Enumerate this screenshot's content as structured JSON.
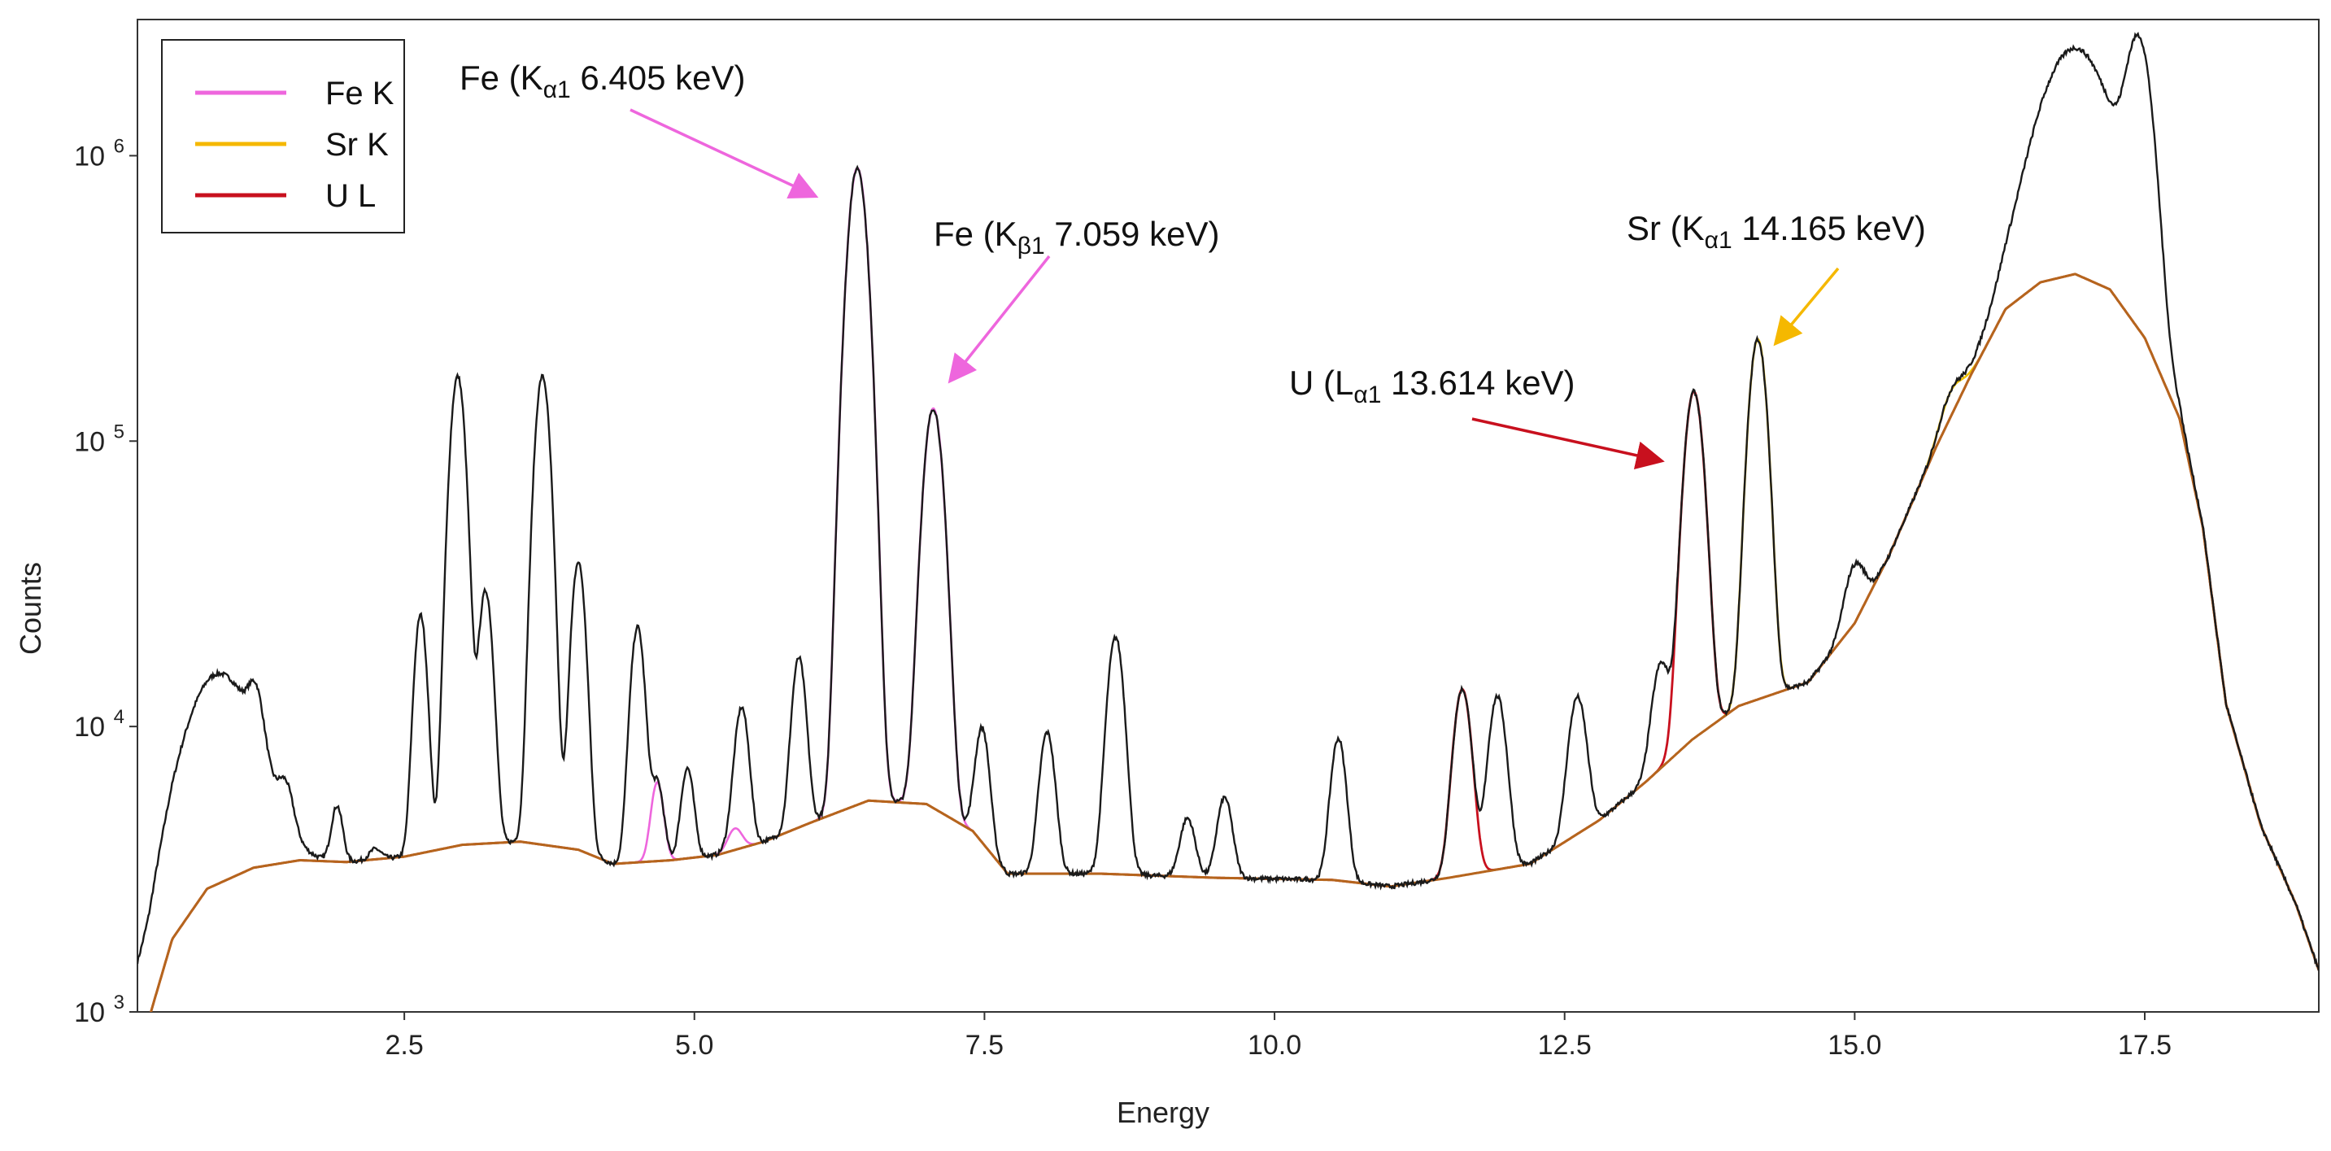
{
  "chart_data": {
    "type": "line",
    "title": "",
    "xlabel": "Energy",
    "ylabel": "Counts",
    "xlim": [
      0.2,
      19.0
    ],
    "ylim": [
      1000,
      3000000
    ],
    "yscale": "log",
    "x_ticks": [
      2.5,
      5.0,
      7.5,
      10.0,
      12.5,
      15.0,
      17.5
    ],
    "x_tick_labels": [
      "2.5",
      "5.0",
      "7.5",
      "10.0",
      "12.5",
      "15.0",
      "17.5"
    ],
    "y_ticks": [
      {
        "value": 1000,
        "base": "10",
        "exp": "3"
      },
      {
        "value": 10000,
        "base": "10",
        "exp": "4"
      },
      {
        "value": 100000,
        "base": "10",
        "exp": "5"
      },
      {
        "value": 1000000,
        "base": "10",
        "exp": "6"
      }
    ],
    "colors": {
      "spectrum": "#1a1a1a",
      "fe": "#ee66dd",
      "sr": "#f2c400",
      "u": "#c8101e",
      "background": "#b5651d"
    },
    "legend": [
      {
        "label": "Fe K",
        "color": "#ee66dd"
      },
      {
        "label": "Sr K",
        "color": "#f5b800"
      },
      {
        "label": "U L",
        "color": "#c8101e"
      }
    ],
    "legend_position": "top-left",
    "baseline": [
      [
        0.3,
        950
      ],
      [
        0.5,
        1800
      ],
      [
        0.8,
        2700
      ],
      [
        1.2,
        3200
      ],
      [
        1.6,
        3400
      ],
      [
        2.0,
        3350
      ],
      [
        2.5,
        3500
      ],
      [
        3.0,
        3850
      ],
      [
        3.5,
        3950
      ],
      [
        4.0,
        3700
      ],
      [
        4.3,
        3300
      ],
      [
        4.8,
        3400
      ],
      [
        5.2,
        3550
      ],
      [
        5.6,
        3950
      ],
      [
        6.0,
        4600
      ],
      [
        6.5,
        5500
      ],
      [
        7.0,
        5350
      ],
      [
        7.4,
        4300
      ],
      [
        7.7,
        3050
      ],
      [
        8.5,
        3050
      ],
      [
        9.5,
        2950
      ],
      [
        10.5,
        2900
      ],
      [
        11.0,
        2750
      ],
      [
        11.5,
        2950
      ],
      [
        12.2,
        3300
      ],
      [
        12.8,
        4700
      ],
      [
        13.2,
        6400
      ],
      [
        13.6,
        9000
      ],
      [
        14.0,
        11800
      ],
      [
        14.6,
        14300
      ],
      [
        15.0,
        23000
      ],
      [
        15.3,
        40000
      ],
      [
        15.7,
        95000
      ],
      [
        16.0,
        170000
      ],
      [
        16.3,
        290000
      ],
      [
        16.6,
        360000
      ],
      [
        16.9,
        385000
      ],
      [
        17.2,
        340000
      ],
      [
        17.5,
        230000
      ],
      [
        17.8,
        120000
      ],
      [
        18.0,
        50000
      ],
      [
        18.2,
        12000
      ],
      [
        18.5,
        4500
      ],
      [
        18.8,
        2400
      ],
      [
        19.0,
        1400
      ]
    ],
    "fe_peaks": [
      [
        6.405,
        900000,
        0.075
      ],
      [
        7.059,
        125000,
        0.075
      ],
      [
        4.68,
        3000,
        0.05
      ],
      [
        5.35,
        700,
        0.06
      ]
    ],
    "u_peaks": [
      [
        13.614,
        140000,
        0.075
      ],
      [
        11.618,
        10500,
        0.07
      ]
    ],
    "sr_peaks": [
      [
        14.165,
        215000,
        0.07
      ],
      [
        15.84,
        28000,
        0.09
      ]
    ],
    "other_peaks": [
      [
        0.9,
        12500,
        0.28
      ],
      [
        1.22,
        4500,
        0.06
      ],
      [
        1.48,
        1700,
        0.06
      ],
      [
        1.92,
        1900,
        0.045
      ],
      [
        2.25,
        300,
        0.05
      ],
      [
        2.64,
        21000,
        0.05
      ],
      [
        2.96,
        165000,
        0.06
      ],
      [
        3.2,
        26000,
        0.055
      ],
      [
        3.69,
        165000,
        0.06
      ],
      [
        4.0,
        34000,
        0.055
      ],
      [
        4.51,
        19000,
        0.055
      ],
      [
        4.94,
        3700,
        0.05
      ],
      [
        5.41,
        7500,
        0.055
      ],
      [
        5.9,
        13000,
        0.055
      ],
      [
        7.48,
        6000,
        0.055
      ],
      [
        8.04,
        6500,
        0.06
      ],
      [
        8.63,
        17500,
        0.065
      ],
      [
        9.25,
        1800,
        0.06
      ],
      [
        9.57,
        2700,
        0.06
      ],
      [
        10.55,
        6200,
        0.06
      ],
      [
        11.92,
        9600,
        0.07
      ],
      [
        12.61,
        8500,
        0.07
      ],
      [
        13.33,
        9500,
        0.07
      ],
      [
        15.0,
        14000,
        0.08
      ],
      [
        16.9,
        2000000,
        0.28
      ],
      [
        17.45,
        2100000,
        0.1
      ]
    ],
    "annotations": [
      {
        "id": "fe-ka1",
        "element": "Fe (K",
        "sub": "α1",
        "energy": "6.405 keV)",
        "peak_energy": 6.405,
        "color": "#ee66dd"
      },
      {
        "id": "fe-kb1",
        "element": "Fe (K",
        "sub": "β1",
        "energy": "7.059 keV)",
        "peak_energy": 7.059,
        "color": "#ee66dd"
      },
      {
        "id": "u-la1",
        "element": "U (L",
        "sub": "α1",
        "energy": "13.614 keV)",
        "peak_energy": 13.614,
        "color": "#c8101e"
      },
      {
        "id": "sr-ka1",
        "element": "Sr (K",
        "sub": "α1",
        "energy": "14.165 keV)",
        "peak_energy": 14.165,
        "color": "#f5b800"
      }
    ]
  }
}
